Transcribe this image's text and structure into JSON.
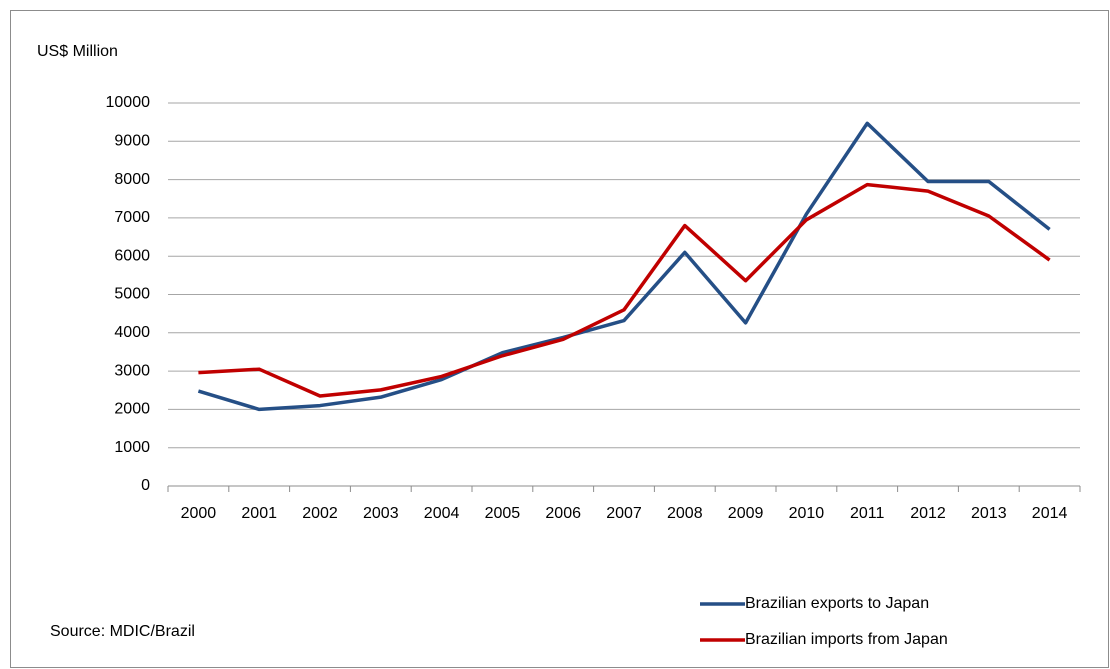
{
  "chart_data": {
    "type": "line",
    "y_axis_label": "US$ Million",
    "annotation": "Source: MDIC/Brazil",
    "categories": [
      "2000",
      "2001",
      "2002",
      "2003",
      "2004",
      "2005",
      "2006",
      "2007",
      "2008",
      "2009",
      "2010",
      "2011",
      "2012",
      "2013",
      "2014"
    ],
    "series": [
      {
        "name": "Brazilian exports to Japan",
        "color": "#254f86",
        "values": [
          2480,
          2000,
          2100,
          2320,
          2780,
          3480,
          3880,
          4320,
          6100,
          4260,
          7100,
          9470,
          7950,
          7950,
          6700
        ]
      },
      {
        "name": "Brazilian imports from Japan",
        "color": "#c00000",
        "values": [
          2960,
          3050,
          2350,
          2510,
          2860,
          3400,
          3830,
          4600,
          6800,
          5360,
          6950,
          7870,
          7700,
          7050,
          5900
        ]
      }
    ],
    "ylim": [
      0,
      10000
    ],
    "yticks": [
      0,
      1000,
      2000,
      3000,
      4000,
      5000,
      6000,
      7000,
      8000,
      9000,
      10000
    ],
    "grid": true,
    "legend": "bottom-right"
  }
}
